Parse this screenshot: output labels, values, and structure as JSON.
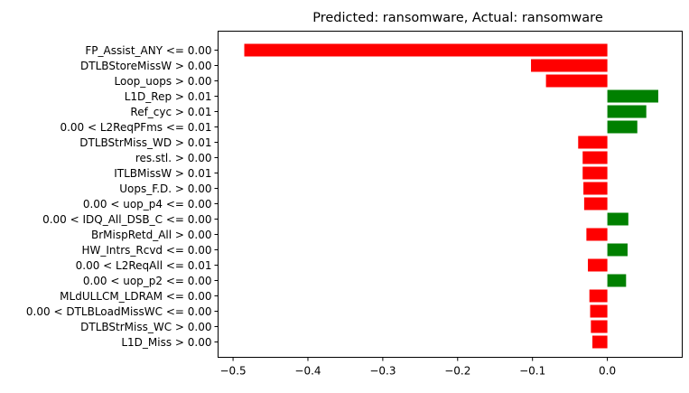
{
  "chart_data": {
    "type": "bar",
    "orientation": "horizontal",
    "title": "Predicted: ransomware, Actual: ransomware",
    "xlabel": "",
    "ylabel": "",
    "xlim": [
      -0.52,
      0.1
    ],
    "xticks": [
      -0.5,
      -0.4,
      -0.3,
      -0.2,
      -0.1,
      0.0
    ],
    "xtick_labels": [
      "−0.5",
      "−0.4",
      "−0.3",
      "−0.2",
      "−0.1",
      "0.0"
    ],
    "grid": false,
    "colors": {
      "positive": "#008000",
      "negative": "#ff0000"
    },
    "categories": [
      "FP_Assist_ANY <= 0.00",
      "DTLBStoreMissW > 0.00",
      "Loop_uops > 0.00",
      "L1D_Rep > 0.01",
      "Ref_cyc > 0.01",
      "0.00 < L2ReqPFms <= 0.01",
      "DTLBStrMiss_WD > 0.01",
      "res.stl. > 0.00",
      "ITLBMissW > 0.01",
      "Uops_F.D. > 0.00",
      "0.00 < uop_p4 <= 0.00",
      "0.00 < IDQ_All_DSB_C <= 0.00",
      "BrMispRetd_All > 0.00",
      "HW_Intrs_Rcvd <= 0.00",
      "0.00 < L2ReqAll <= 0.01",
      "0.00 < uop_p2 <= 0.00",
      "MLdULLCM_LDRAM <= 0.00",
      "0.00 < DTLBLoadMissWC <= 0.00",
      "DTLBStrMiss_WC > 0.00",
      "L1D_Miss > 0.00"
    ],
    "values": [
      -0.485,
      -0.102,
      -0.082,
      0.068,
      0.052,
      0.04,
      -0.039,
      -0.033,
      -0.033,
      -0.032,
      -0.031,
      0.028,
      -0.028,
      0.027,
      -0.026,
      0.025,
      -0.024,
      -0.023,
      -0.022,
      -0.02
    ]
  }
}
